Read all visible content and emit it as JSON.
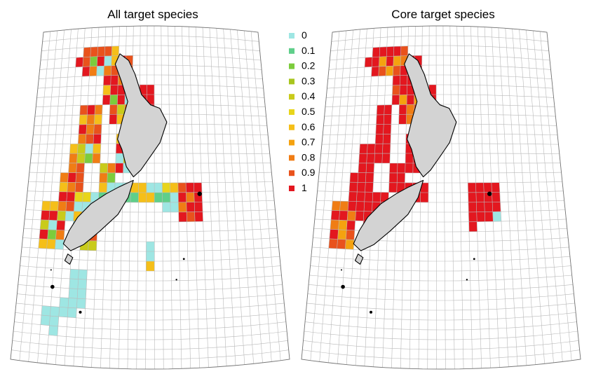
{
  "maps": [
    {
      "id": "all",
      "title": "All target species"
    },
    {
      "id": "core",
      "title": "Core target species"
    }
  ],
  "legend": {
    "items": [
      {
        "label": "0",
        "color": "#9ee6e3"
      },
      {
        "label": "0.1",
        "color": "#5fcf8a"
      },
      {
        "label": "0.2",
        "color": "#7ccc3c"
      },
      {
        "label": "0.3",
        "color": "#a8c51e"
      },
      {
        "label": "0.4",
        "color": "#c9cb1a"
      },
      {
        "label": "0.5",
        "color": "#e8d51b"
      },
      {
        "label": "0.6",
        "color": "#f5bf19"
      },
      {
        "label": "0.7",
        "color": "#f5a20f"
      },
      {
        "label": "0.8",
        "color": "#f07d14"
      },
      {
        "label": "0.9",
        "color": "#e9521c"
      },
      {
        "label": "1",
        "color": "#e3171f"
      }
    ]
  },
  "colors": {
    "land": "#d3d3d3",
    "coastline": "#000000",
    "grid": "#b9b9b9"
  }
}
